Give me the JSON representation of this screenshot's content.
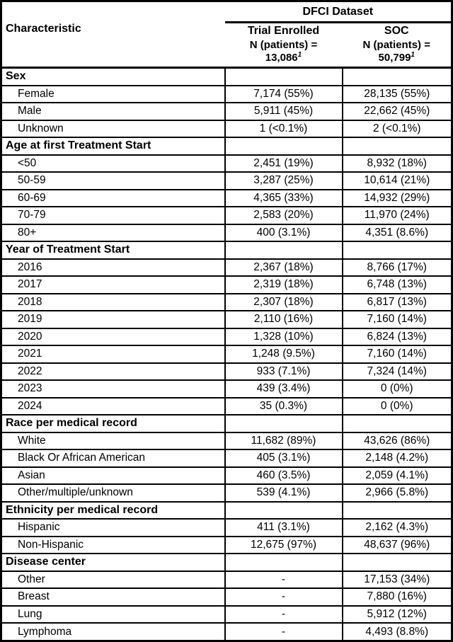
{
  "header": {
    "characteristic_label": "Characteristic",
    "dataset_label": "DFCI Dataset",
    "columns": [
      {
        "label": "Trial Enrolled",
        "n_label": "N (patients) =",
        "n_value": "13,086",
        "n_footnote": "1"
      },
      {
        "label": "SOC",
        "n_label": "N (patients) =",
        "n_value": "50,799",
        "n_footnote": "1"
      }
    ]
  },
  "sections": [
    {
      "title": "Sex",
      "rows": [
        {
          "label": "Female",
          "trial": "7,174 (55%)",
          "soc": "28,135 (55%)"
        },
        {
          "label": "Male",
          "trial": "5,911 (45%)",
          "soc": "22,662 (45%)"
        },
        {
          "label": "Unknown",
          "trial": "1 (<0.1%)",
          "soc": "2 (<0.1%)"
        }
      ]
    },
    {
      "title": "Age at first Treatment Start",
      "rows": [
        {
          "label": "<50",
          "trial": "2,451 (19%)",
          "soc": "8,932 (18%)"
        },
        {
          "label": "50-59",
          "trial": "3,287 (25%)",
          "soc": "10,614 (21%)"
        },
        {
          "label": "60-69",
          "trial": "4,365 (33%)",
          "soc": "14,932 (29%)"
        },
        {
          "label": "70-79",
          "trial": "2,583 (20%)",
          "soc": "11,970 (24%)"
        },
        {
          "label": "80+",
          "trial": "400 (3.1%)",
          "soc": "4,351 (8.6%)"
        }
      ]
    },
    {
      "title": "Year of Treatment Start",
      "rows": [
        {
          "label": "2016",
          "trial": "2,367 (18%)",
          "soc": "8,766 (17%)"
        },
        {
          "label": "2017",
          "trial": "2,319 (18%)",
          "soc": "6,748 (13%)"
        },
        {
          "label": "2018",
          "trial": "2,307 (18%)",
          "soc": "6,817 (13%)"
        },
        {
          "label": "2019",
          "trial": "2,110 (16%)",
          "soc": "7,160 (14%)"
        },
        {
          "label": "2020",
          "trial": "1,328 (10%)",
          "soc": "6,824 (13%)"
        },
        {
          "label": "2021",
          "trial": "1,248 (9.5%)",
          "soc": "7,160 (14%)"
        },
        {
          "label": "2022",
          "trial": "933 (7.1%)",
          "soc": "7,324 (14%)"
        },
        {
          "label": "2023",
          "trial": "439 (3.4%)",
          "soc": "0 (0%)"
        },
        {
          "label": "2024",
          "trial": "35 (0.3%)",
          "soc": "0 (0%)"
        }
      ]
    },
    {
      "title": "Race per medical record",
      "rows": [
        {
          "label": "White",
          "trial": "11,682 (89%)",
          "soc": "43,626 (86%)"
        },
        {
          "label": "Black Or African American",
          "trial": "405 (3.1%)",
          "soc": "2,148 (4.2%)"
        },
        {
          "label": "Asian",
          "trial": "460 (3.5%)",
          "soc": "2,059 (4.1%)"
        },
        {
          "label": "Other/multiple/unknown",
          "trial": "539 (4.1%)",
          "soc": "2,966 (5.8%)"
        }
      ]
    },
    {
      "title": "Ethnicity per medical record",
      "rows": [
        {
          "label": "Hispanic",
          "trial": "411 (3.1%)",
          "soc": "2,162 (4.3%)"
        },
        {
          "label": "Non-Hispanic",
          "trial": "12,675 (97%)",
          "soc": "48,637 (96%)"
        }
      ]
    },
    {
      "title": "Disease center",
      "rows": [
        {
          "label": "Other",
          "trial": "-",
          "soc": "17,153 (34%)"
        },
        {
          "label": "Breast",
          "trial": "-",
          "soc": "7,880 (16%)"
        },
        {
          "label": "Lung",
          "trial": "-",
          "soc": "5,912 (12%)"
        },
        {
          "label": "Lymphoma",
          "trial": "-",
          "soc": "4,493 (8.8%)"
        }
      ]
    }
  ],
  "colors": {
    "border": "#000000",
    "text": "#000000",
    "background": "#ffffff"
  }
}
